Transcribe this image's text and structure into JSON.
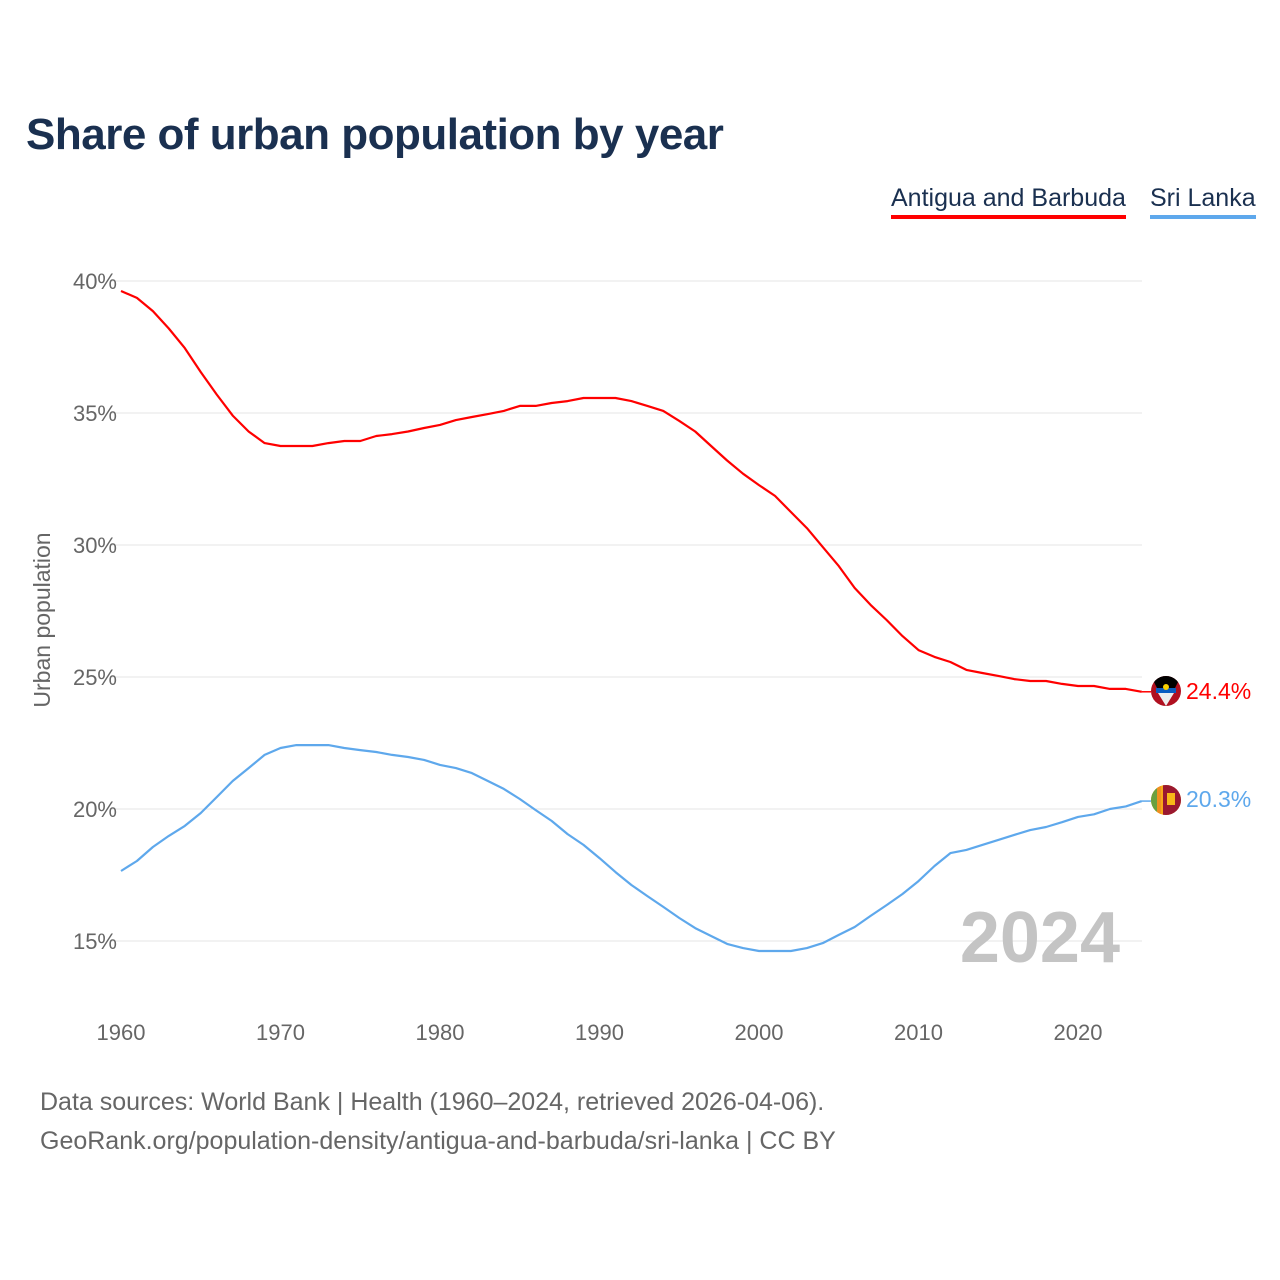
{
  "colors": {
    "antigua": "#ff0000",
    "srilanka": "#5ea8ec",
    "title": "#1a3050",
    "grid": "#e6e6e6",
    "year": "#c4c4c4"
  },
  "legend": {
    "a": "Antigua and Barbuda",
    "b": "Sri Lanka"
  },
  "year_watermark": "2024",
  "footer": {
    "line1": "Data sources: World Bank | Health (1960–2024, retrieved 2026-04-06).",
    "line2": "GeoRank.org/population-density/antigua-and-barbuda/sri-lanka | CC BY"
  },
  "chart_data": {
    "type": "line",
    "title": "Share of urban population by year",
    "xlabel": "",
    "ylabel": "Urban population",
    "xlim": [
      1960,
      2024
    ],
    "ylim": [
      13,
      41
    ],
    "yticks": [
      15,
      20,
      25,
      30,
      35,
      40
    ],
    "ytick_labels": [
      "15%",
      "20%",
      "25%",
      "30%",
      "35%",
      "40%"
    ],
    "xticks": [
      1960,
      1970,
      1980,
      1990,
      2000,
      2010,
      2020
    ],
    "xtick_labels": [
      "1960",
      "1970",
      "1980",
      "1990",
      "2000",
      "2010",
      "2020"
    ],
    "grid": true,
    "legend_position": "top-right",
    "x_start": 1960,
    "series": [
      {
        "name": "Antigua and Barbuda",
        "end_label": "24.4%",
        "values": [
          39.62,
          39.36,
          38.86,
          38.2,
          37.46,
          36.55,
          35.7,
          34.9,
          34.3,
          33.86,
          33.75,
          33.75,
          33.75,
          33.86,
          33.94,
          33.94,
          34.13,
          34.2,
          34.3,
          34.43,
          34.55,
          34.73,
          34.85,
          34.96,
          35.08,
          35.27,
          35.27,
          35.38,
          35.45,
          35.57,
          35.57,
          35.57,
          35.45,
          35.27,
          35.08,
          34.7,
          34.3,
          33.75,
          33.2,
          32.7,
          32.27,
          31.86,
          31.25,
          30.64,
          29.92,
          29.2,
          28.37,
          27.73,
          27.16,
          26.55,
          26.02,
          25.76,
          25.57,
          25.27,
          25.15,
          25.04,
          24.92,
          24.85,
          24.85,
          24.74,
          24.66,
          24.66,
          24.55,
          24.55,
          24.44
        ]
      },
      {
        "name": "Sri Lanka",
        "end_label": "20.3%",
        "values": [
          17.65,
          18.03,
          18.56,
          18.98,
          19.36,
          19.85,
          20.45,
          21.06,
          21.55,
          22.05,
          22.31,
          22.42,
          22.42,
          22.42,
          22.31,
          22.23,
          22.16,
          22.05,
          21.97,
          21.86,
          21.67,
          21.55,
          21.36,
          21.06,
          20.76,
          20.38,
          19.96,
          19.55,
          19.05,
          18.64,
          18.14,
          17.61,
          17.12,
          16.7,
          16.29,
          15.87,
          15.49,
          15.19,
          14.89,
          14.73,
          14.62,
          14.62,
          14.62,
          14.73,
          14.92,
          15.23,
          15.53,
          15.95,
          16.36,
          16.78,
          17.27,
          17.84,
          18.33,
          18.45,
          18.64,
          18.83,
          19.02,
          19.2,
          19.32,
          19.5,
          19.7,
          19.8,
          20.0,
          20.1,
          20.3
        ]
      }
    ]
  }
}
